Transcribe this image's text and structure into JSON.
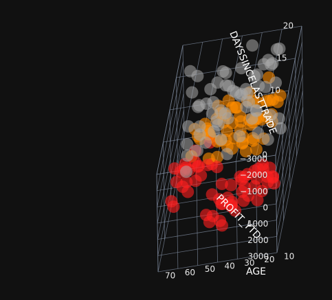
{
  "chart_data": {
    "type": "scatter3d",
    "title": "",
    "axes": {
      "x": {
        "label": "PROFIT_YTD",
        "range": [
          -3000,
          3000
        ],
        "ticks": [
          -3000,
          -2000,
          -1000,
          0,
          1000,
          2000,
          3000
        ]
      },
      "y": {
        "label": "AGE",
        "range": [
          10,
          70
        ],
        "ticks": [
          10,
          20,
          30,
          40,
          50,
          60,
          70
        ]
      },
      "z": {
        "label": "DAYSSINCELASTTRADE",
        "range": [
          0,
          20
        ],
        "ticks": [
          0,
          5,
          10,
          15,
          20
        ]
      }
    },
    "grid": true,
    "legend": "none",
    "series": [
      {
        "color": "#a8a8a8",
        "opacity": 0.55,
        "points": [
          [
            -2600,
            20,
            18
          ],
          [
            -2400,
            25,
            17
          ],
          [
            -2200,
            22,
            19
          ],
          [
            -2000,
            30,
            16
          ],
          [
            -1800,
            28,
            18
          ],
          [
            -1600,
            35,
            15
          ],
          [
            -1400,
            40,
            19
          ],
          [
            -1200,
            45,
            17
          ],
          [
            -1000,
            50,
            20
          ],
          [
            -800,
            55,
            18
          ],
          [
            -600,
            60,
            16
          ],
          [
            -400,
            65,
            19
          ],
          [
            -200,
            30,
            15
          ],
          [
            0,
            35,
            17
          ],
          [
            200,
            40,
            19
          ],
          [
            400,
            45,
            16
          ],
          [
            600,
            50,
            18
          ],
          [
            800,
            55,
            20
          ],
          [
            1000,
            60,
            17
          ],
          [
            1200,
            65,
            15
          ],
          [
            1400,
            25,
            18
          ],
          [
            1600,
            30,
            16
          ],
          [
            1800,
            35,
            19
          ],
          [
            2000,
            40,
            17
          ],
          [
            2200,
            45,
            15
          ],
          [
            2400,
            50,
            18
          ],
          [
            2600,
            55,
            20
          ],
          [
            -2500,
            60,
            16
          ],
          [
            -2100,
            65,
            18
          ],
          [
            -1700,
            20,
            15
          ],
          [
            -1300,
            25,
            19
          ],
          [
            -900,
            30,
            17
          ],
          [
            -500,
            35,
            15
          ],
          [
            -100,
            40,
            18
          ],
          [
            300,
            45,
            20
          ],
          [
            700,
            50,
            16
          ],
          [
            1100,
            55,
            19
          ],
          [
            1500,
            60,
            17
          ],
          [
            1900,
            65,
            15
          ],
          [
            2300,
            20,
            18
          ],
          [
            -2800,
            45,
            15
          ],
          [
            -1900,
            50,
            16
          ],
          [
            -1100,
            55,
            15
          ],
          [
            -300,
            60,
            17
          ],
          [
            500,
            65,
            16
          ],
          [
            1300,
            20,
            17
          ],
          [
            2100,
            25,
            16
          ],
          [
            -2300,
            35,
            20
          ],
          [
            -1500,
            40,
            15
          ],
          [
            -700,
            45,
            14
          ],
          [
            100,
            50,
            15
          ],
          [
            900,
            55,
            14
          ],
          [
            1700,
            60,
            15
          ],
          [
            2500,
            65,
            14
          ],
          [
            -2700,
            30,
            14
          ],
          [
            -1000,
            25,
            20
          ],
          [
            0,
            28,
            19
          ],
          [
            1000,
            32,
            18
          ],
          [
            -500,
            48,
            19
          ],
          [
            600,
            38,
            20
          ]
        ]
      },
      {
        "color": "#ff8c00",
        "opacity": 0.6,
        "points": [
          [
            -2800,
            15,
            9
          ],
          [
            -2600,
            18,
            10
          ],
          [
            -2400,
            20,
            8
          ],
          [
            -2200,
            22,
            11
          ],
          [
            -2000,
            25,
            9
          ],
          [
            -1800,
            27,
            12
          ],
          [
            -1600,
            30,
            10
          ],
          [
            -1400,
            32,
            8
          ],
          [
            -1200,
            35,
            11
          ],
          [
            -1000,
            37,
            9
          ],
          [
            -800,
            40,
            12
          ],
          [
            -600,
            42,
            10
          ],
          [
            -400,
            45,
            8
          ],
          [
            -200,
            47,
            11
          ],
          [
            0,
            50,
            9
          ],
          [
            -2700,
            28,
            10
          ],
          [
            -2500,
            31,
            12
          ],
          [
            -2300,
            34,
            9
          ],
          [
            -2100,
            37,
            11
          ],
          [
            -1900,
            40,
            8
          ],
          [
            -1700,
            43,
            10
          ],
          [
            -1500,
            46,
            12
          ],
          [
            -1300,
            49,
            9
          ],
          [
            -1100,
            52,
            11
          ],
          [
            -900,
            55,
            10
          ],
          [
            -700,
            58,
            8
          ],
          [
            -500,
            20,
            12
          ],
          [
            -300,
            23,
            10
          ],
          [
            -100,
            26,
            9
          ],
          [
            100,
            29,
            11
          ],
          [
            300,
            32,
            10
          ],
          [
            500,
            35,
            12
          ],
          [
            -2900,
            38,
            9
          ],
          [
            -2600,
            41,
            11
          ],
          [
            -2300,
            44,
            10
          ],
          [
            -2000,
            47,
            12
          ],
          [
            -1700,
            50,
            9
          ],
          [
            -1400,
            53,
            11
          ],
          [
            -1100,
            56,
            10
          ],
          [
            -800,
            59,
            12
          ],
          [
            -2400,
            15,
            11
          ],
          [
            -2100,
            18,
            9
          ],
          [
            -1800,
            21,
            12
          ],
          [
            -1500,
            24,
            10
          ],
          [
            -1200,
            27,
            8
          ],
          [
            -900,
            30,
            11
          ],
          [
            -600,
            33,
            9
          ],
          [
            -300,
            36,
            12
          ],
          [
            0,
            39,
            10
          ],
          [
            200,
            42,
            11
          ],
          [
            -2850,
            22,
            13
          ],
          [
            -2550,
            26,
            7
          ],
          [
            -1650,
            33,
            13
          ],
          [
            -950,
            44,
            13
          ],
          [
            -350,
            52,
            12
          ],
          [
            -2250,
            48,
            7
          ],
          [
            -1350,
            39,
            13
          ],
          [
            -450,
            29,
            13
          ],
          [
            150,
            46,
            12
          ],
          [
            -2750,
            45,
            8
          ]
        ]
      },
      {
        "color": "#ff2020",
        "opacity": 0.6,
        "points": [
          [
            200,
            15,
            5
          ],
          [
            400,
            18,
            7
          ],
          [
            600,
            20,
            4
          ],
          [
            800,
            22,
            8
          ],
          [
            1000,
            25,
            6
          ],
          [
            1200,
            27,
            9
          ],
          [
            1400,
            30,
            5
          ],
          [
            1600,
            32,
            7
          ],
          [
            1800,
            35,
            10
          ],
          [
            2000,
            37,
            6
          ],
          [
            2200,
            40,
            8
          ],
          [
            2400,
            42,
            5
          ],
          [
            2600,
            45,
            9
          ],
          [
            2800,
            47,
            7
          ],
          [
            3000,
            50,
            11
          ],
          [
            -200,
            52,
            6
          ],
          [
            0,
            55,
            8
          ],
          [
            300,
            58,
            5
          ],
          [
            500,
            60,
            9
          ],
          [
            700,
            62,
            7
          ],
          [
            900,
            65,
            10
          ],
          [
            1100,
            67,
            6
          ],
          [
            1300,
            20,
            8
          ],
          [
            1500,
            23,
            5
          ],
          [
            1700,
            26,
            9
          ],
          [
            1900,
            29,
            7
          ],
          [
            2100,
            32,
            11
          ],
          [
            2300,
            35,
            6
          ],
          [
            2500,
            38,
            8
          ],
          [
            2700,
            41,
            5
          ],
          [
            2900,
            44,
            9
          ],
          [
            -400,
            47,
            7
          ],
          [
            -600,
            50,
            10
          ],
          [
            -800,
            53,
            6
          ],
          [
            -1000,
            56,
            8
          ],
          [
            -1200,
            59,
            5
          ],
          [
            100,
            62,
            9
          ],
          [
            350,
            65,
            7
          ],
          [
            650,
            68,
            10
          ],
          [
            950,
            30,
            6
          ],
          [
            1250,
            33,
            8
          ],
          [
            1550,
            36,
            5
          ],
          [
            1850,
            39,
            9
          ],
          [
            2150,
            42,
            7
          ],
          [
            2450,
            45,
            11
          ],
          [
            2750,
            48,
            6
          ],
          [
            3050,
            51,
            8
          ],
          [
            -300,
            54,
            5
          ],
          [
            50,
            57,
            9
          ],
          [
            450,
            60,
            7
          ],
          [
            850,
            63,
            10
          ],
          [
            1450,
            66,
            6
          ],
          [
            2050,
            25,
            12
          ],
          [
            2650,
            28,
            13
          ],
          [
            2950,
            20,
            12
          ],
          [
            3000,
            35,
            13
          ],
          [
            2800,
            22,
            11
          ],
          [
            2550,
            18,
            10
          ],
          [
            1750,
            48,
            12
          ],
          [
            1150,
            52,
            11
          ]
        ]
      }
    ]
  }
}
